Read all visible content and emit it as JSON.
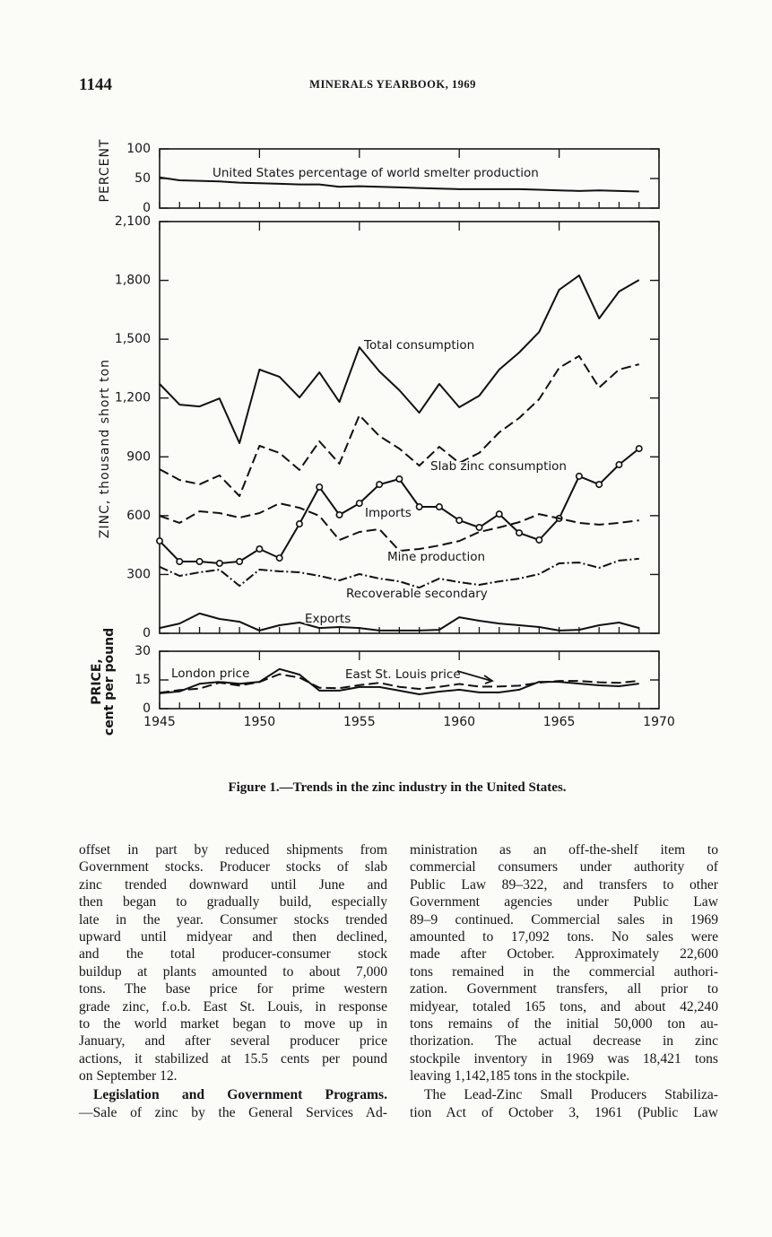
{
  "header": {
    "page_number": "1144",
    "running_title": "MINERALS YEARBOOK, 1969"
  },
  "chart_data": [
    {
      "type": "line",
      "ylabel": "PERCENT",
      "x": [
        1945,
        1946,
        1947,
        1948,
        1949,
        1950,
        1951,
        1952,
        1953,
        1954,
        1955,
        1956,
        1957,
        1958,
        1959,
        1960,
        1961,
        1962,
        1963,
        1964,
        1965,
        1966,
        1967,
        1968,
        1969
      ],
      "xlim": [
        1945,
        1970
      ],
      "ylim": [
        0,
        100
      ],
      "yticks": [
        0,
        50,
        100
      ],
      "series": [
        {
          "name": "United States percentage of world smelter production",
          "color": "#111",
          "dash": "solid",
          "values": [
            52,
            47,
            46,
            45,
            43,
            42,
            41,
            40,
            40,
            36,
            37,
            36,
            35,
            34,
            33,
            32,
            32,
            32,
            32,
            31,
            30,
            29,
            30,
            29,
            28
          ]
        }
      ]
    },
    {
      "type": "line",
      "ylabel": "ZINC, thousand short ton",
      "x": [
        1945,
        1946,
        1947,
        1948,
        1949,
        1950,
        1951,
        1952,
        1953,
        1954,
        1955,
        1956,
        1957,
        1958,
        1959,
        1960,
        1961,
        1962,
        1963,
        1964,
        1965,
        1966,
        1967,
        1968,
        1969
      ],
      "xlim": [
        1945,
        1970
      ],
      "ylim": [
        0,
        2100
      ],
      "yticks": [
        0,
        300,
        600,
        900,
        {
          "value": 1200,
          "label": "1,200"
        },
        {
          "value": 1500,
          "label": "1,500"
        },
        {
          "value": 1800,
          "label": "1,800"
        },
        {
          "value": 2100,
          "label": "2,100"
        }
      ],
      "series": [
        {
          "name": "Total consumption",
          "color": "#111",
          "dash": "solid",
          "values": [
            1272,
            1166,
            1157,
            1198,
            970,
            1345,
            1308,
            1203,
            1331,
            1180,
            1459,
            1336,
            1240,
            1125,
            1272,
            1153,
            1212,
            1345,
            1432,
            1537,
            1752,
            1825,
            1606,
            1743,
            1802
          ]
        },
        {
          "name": "Slab zinc consumption",
          "color": "#111",
          "dash": "dashed",
          "values": [
            837,
            782,
            760,
            805,
            700,
            956,
            920,
            833,
            979,
            865,
            1112,
            1006,
            942,
            855,
            951,
            869,
            920,
            1025,
            1098,
            1194,
            1354,
            1414,
            1253,
            1345,
            1372
          ]
        },
        {
          "name": "Imports",
          "color": "#111",
          "dash": "solid",
          "marker": "circle",
          "values": [
            471,
            366,
            366,
            357,
            366,
            430,
            384,
            558,
            746,
            604,
            663,
            759,
            787,
            645,
            645,
            576,
            540,
            608,
            512,
            476,
            586,
            801,
            759,
            860,
            942
          ]
        },
        {
          "name": "Mine production",
          "color": "#111",
          "dash": "dashed",
          "values": [
            599,
            563,
            622,
            613,
            590,
            613,
            663,
            640,
            599,
            476,
            517,
            531,
            421,
            430,
            448,
            471,
            517,
            540,
            567,
            608,
            586,
            563,
            554,
            563,
            576
          ]
        },
        {
          "name": "Recoverable secondary",
          "color": "#111",
          "dash": "dash-dot",
          "values": [
            339,
            293,
            311,
            325,
            242,
            325,
            316,
            311,
            293,
            270,
            302,
            279,
            265,
            233,
            279,
            261,
            247,
            265,
            279,
            302,
            357,
            361,
            334,
            371,
            380
          ]
        },
        {
          "name": "Exports",
          "color": "#111",
          "dash": "solid",
          "values": [
            27,
            50,
            101,
            73,
            59,
            14,
            41,
            55,
            27,
            32,
            27,
            14,
            14,
            14,
            18,
            82,
            64,
            50,
            41,
            32,
            14,
            18,
            41,
            55,
            27
          ]
        }
      ]
    },
    {
      "type": "line",
      "ylabel": [
        "PRICE,",
        "cent per pound"
      ],
      "x": [
        1945,
        1946,
        1947,
        1948,
        1949,
        1950,
        1951,
        1952,
        1953,
        1954,
        1955,
        1956,
        1957,
        1958,
        1959,
        1960,
        1961,
        1962,
        1963,
        1964,
        1965,
        1966,
        1967,
        1968,
        1969
      ],
      "xlim": [
        1945,
        1970
      ],
      "xticks": [
        1945,
        1950,
        1955,
        1960,
        1965,
        1970
      ],
      "ylim": [
        0,
        30
      ],
      "yticks": [
        0,
        15,
        30
      ],
      "series": [
        {
          "name": "London price",
          "color": "#111",
          "dash": "solid",
          "values": [
            8,
            9,
            13,
            14,
            13,
            14,
            20.7,
            17.8,
            9.4,
            9.4,
            11.3,
            11.3,
            9.4,
            7.5,
            8.9,
            9.9,
            8.5,
            8.5,
            9.9,
            14,
            14,
            13.1,
            12.2,
            11.7,
            13.1
          ]
        },
        {
          "name": "East St. Louis price",
          "color": "#111",
          "dash": "dashed",
          "values": [
            8.3,
            9.7,
            10.5,
            13.6,
            12.1,
            13.9,
            18,
            16.2,
            10.9,
            10.7,
            12.3,
            13.5,
            11.4,
            10.3,
            11.4,
            12.9,
            11.5,
            11.6,
            12,
            13.6,
            14.5,
            14.5,
            13.8,
            13.5,
            14.6
          ]
        }
      ]
    }
  ],
  "caption": "Figure 1.—Trends in the zinc industry in the United States.",
  "columns": [
    [
      {
        "lines": [
          "offset in part by reduced shipments from",
          "Government stocks. Producer stocks of slab",
          "zinc trended downward until June and",
          "then began to gradually build, especially",
          "late in the year. Consumer stocks trended",
          "upward until midyear and then declined,",
          "and the total producer-consumer stock",
          "buildup at plants amounted to about 7,000",
          "tons. The base price for prime western",
          "grade zinc, f.o.b. East St. Louis, in response",
          "to the world market began to move up in",
          "January, and after several producer price",
          "actions, it stabilized at 15.5 cents per pound",
          "on September 12."
        ]
      },
      {
        "heading": "Legislation and Government Programs.",
        "lines": [
          "—Sale of zinc by the General Services Ad-"
        ]
      }
    ],
    [
      {
        "lines": [
          "ministration as an off-the-shelf item to",
          "commercial consumers under authority of",
          "Public Law 89–322, and transfers to other",
          "Government agencies under Public Law",
          "89–9 continued. Commercial sales in 1969",
          "amounted to 17,092 tons. No sales were",
          "made after October. Approximately 22,600",
          "tons remained in the commercial authori-",
          "zation. Government transfers, all prior to",
          "midyear, totaled 165 tons, and about 42,240",
          "tons remains of the initial 50,000 ton au-",
          "thorization. The actual decrease in zinc",
          "stockpile inventory in 1969 was 18,421 tons",
          "leaving 1,142,185 tons in the stockpile."
        ]
      },
      {
        "lines": [
          "The Lead-Zinc Small Producers Stabiliza-",
          "tion Act of October 3, 1961 (Public Law"
        ]
      }
    ]
  ]
}
